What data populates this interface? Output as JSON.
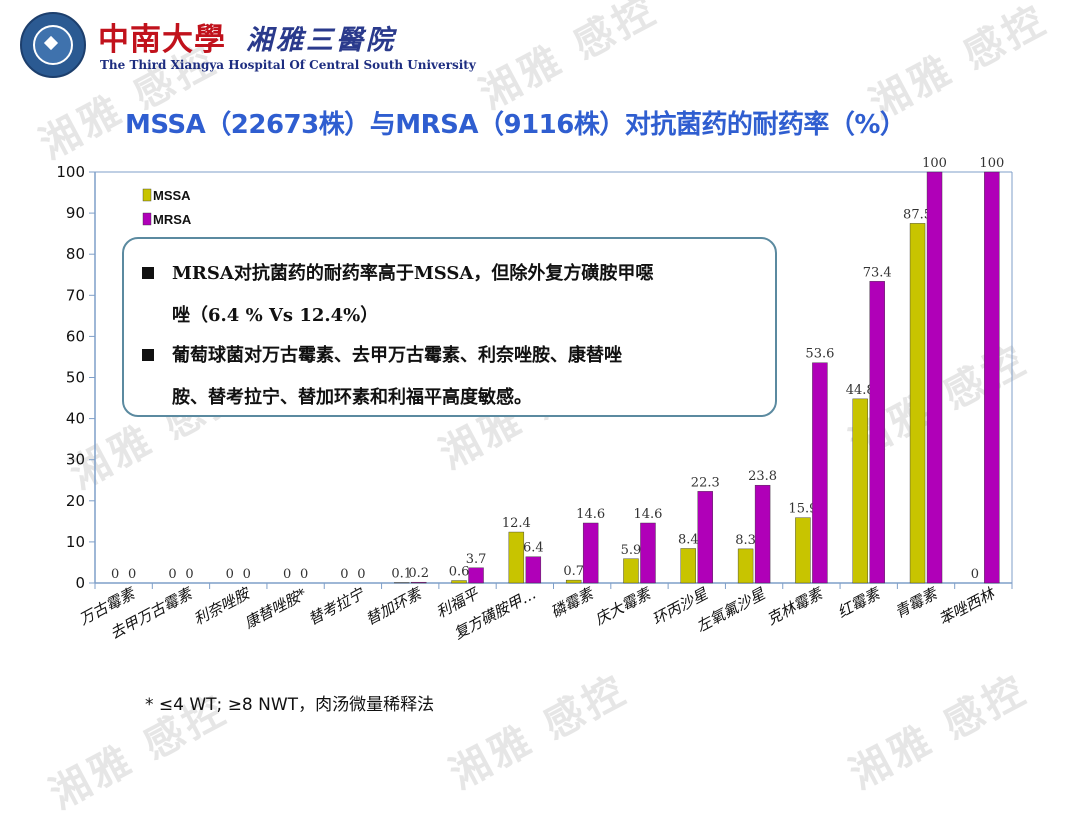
{
  "header": {
    "school_name": "中南大學",
    "hospital_name": "湘雅三醫院",
    "hospital_en": "The Third Xiangya Hospital Of Central South University"
  },
  "watermark": "湘雅 感控",
  "title": "MSSA（22673株）与MRSA（9116株）对抗菌药的耐药率（%）",
  "callout": {
    "line1": "MRSA对抗菌药的耐药率高于MSSA，但除外复方磺胺甲噁",
    "line2": "唑（6.4 % Vs 12.4%）",
    "line3": "葡萄球菌对万古霉素、去甲万古霉素、利奈唑胺、康替唑",
    "line4": "胺、替考拉宁、替加环素和利福平高度敏感。"
  },
  "footnote": "* ≤4 WT; ≥8 NWT，肉汤微量稀释法",
  "colors": {
    "mssa": "#c8c400",
    "mrsa": "#b000b8",
    "title": "#2f5ed0",
    "axis": "#7f9fc8"
  },
  "chart_data": {
    "type": "bar",
    "categories": [
      "万古霉素",
      "去甲万古霉素",
      "利奈唑胺",
      "康替唑胺*",
      "替考拉宁",
      "替加环素",
      "利福平",
      "复方磺胺甲…",
      "磷霉素",
      "庆大霉素",
      "环丙沙星",
      "左氧氟沙星",
      "克林霉素",
      "红霉素",
      "青霉素",
      "苯唑西林"
    ],
    "series": [
      {
        "name": "MSSA",
        "values": [
          0,
          0,
          0,
          0,
          0,
          0.1,
          0.6,
          12.4,
          0.7,
          5.9,
          8.4,
          8.3,
          15.9,
          44.8,
          87.5,
          0
        ]
      },
      {
        "name": "MRSA",
        "values": [
          0,
          0,
          0,
          0,
          0,
          0.2,
          3.7,
          6.4,
          14.6,
          14.6,
          22.3,
          23.8,
          53.6,
          73.4,
          100,
          100
        ]
      }
    ],
    "ylim": [
      0,
      100
    ],
    "yticks": [
      0,
      10,
      20,
      30,
      40,
      50,
      60,
      70,
      80,
      90,
      100
    ],
    "legend": "top-left",
    "grid": false
  }
}
